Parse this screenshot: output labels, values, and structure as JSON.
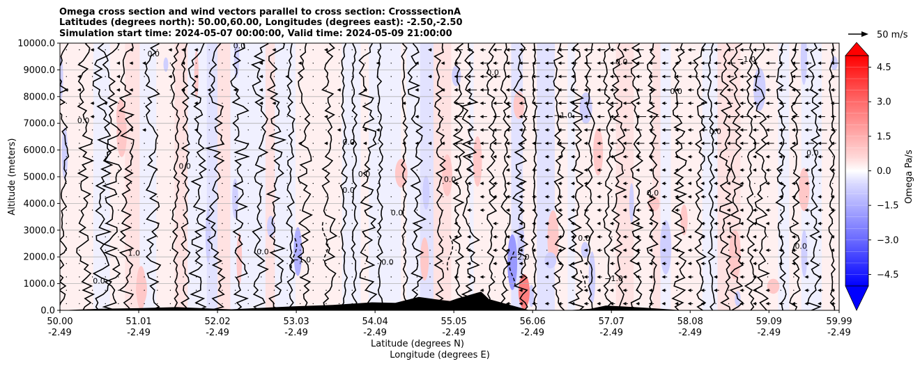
{
  "chart_data": {
    "type": "contour",
    "title_lines": [
      "Omega cross section and wind vectors parallel to cross section: CrosssectionA",
      "Latitudes (degrees north): 50.00,60.00, Longitudes (degrees east): -2.50,-2.50",
      "Simulation start time: 2024-05-07 00:00:00, Valid time: 2024-05-09 21:00:00"
    ],
    "ylabel": "Altitude (meters)",
    "xlabel_lat": "Latitude (degrees N)",
    "xlabel_lon": "Longitude (degrees E)",
    "xlim": [
      50.0,
      59.99
    ],
    "ylim": [
      0,
      10000
    ],
    "x_ticks": [
      {
        "value": 50.0,
        "lat": "50.00",
        "lon": "-2.49"
      },
      {
        "value": 51.01,
        "lat": "51.01",
        "lon": "-2.49"
      },
      {
        "value": 52.02,
        "lat": "52.02",
        "lon": "-2.49"
      },
      {
        "value": 53.03,
        "lat": "53.03",
        "lon": "-2.49"
      },
      {
        "value": 54.04,
        "lat": "54.04",
        "lon": "-2.49"
      },
      {
        "value": 55.05,
        "lat": "55.05",
        "lon": "-2.49"
      },
      {
        "value": 56.06,
        "lat": "56.06",
        "lon": "-2.49"
      },
      {
        "value": 57.07,
        "lat": "57.07",
        "lon": "-2.49"
      },
      {
        "value": 58.08,
        "lat": "58.08",
        "lon": "-2.49"
      },
      {
        "value": 59.09,
        "lat": "59.09",
        "lon": "-2.49"
      },
      {
        "value": 59.99,
        "lat": "59.99",
        "lon": "-2.49"
      }
    ],
    "y_ticks": [
      {
        "value": 0,
        "label": "0.0"
      },
      {
        "value": 1000,
        "label": "1000.0"
      },
      {
        "value": 2000,
        "label": "2000.0"
      },
      {
        "value": 3000,
        "label": "3000.0"
      },
      {
        "value": 4000,
        "label": "4000.0"
      },
      {
        "value": 5000,
        "label": "5000.0"
      },
      {
        "value": 6000,
        "label": "6000.0"
      },
      {
        "value": 7000,
        "label": "7000.0"
      },
      {
        "value": 8000,
        "label": "8000.0"
      },
      {
        "value": 9000,
        "label": "9000.0"
      },
      {
        "value": 10000,
        "label": "10000.0"
      }
    ],
    "grid": "horizontal",
    "colorbar": {
      "label": "Omega Pa/s",
      "vmin": -5.0,
      "vmax": 5.0,
      "ticks": [
        {
          "value": 4.5,
          "label": "4.5"
        },
        {
          "value": 3.0,
          "label": "3.0"
        },
        {
          "value": 1.5,
          "label": "1.5"
        },
        {
          "value": 0.0,
          "label": "0.0"
        },
        {
          "value": -1.5,
          "label": "−1.5"
        },
        {
          "value": -3.0,
          "label": "−3.0"
        },
        {
          "value": -4.5,
          "label": "−4.5"
        }
      ],
      "color_low": "#0000ff",
      "color_mid": "#ffffff",
      "color_high": "#ff0000"
    },
    "quiver_key": {
      "label": "50 m/s",
      "speed": 50
    },
    "contour_labels": [
      {
        "x": 50.95,
        "y": 2050,
        "text": "1.0"
      },
      {
        "x": 54.32,
        "y": 3550,
        "text": "0.0"
      },
      {
        "x": 53.9,
        "y": 5000,
        "text": "0.0"
      },
      {
        "x": 57.9,
        "y": 8100,
        "text": "0.0"
      },
      {
        "x": 56.72,
        "y": 2600,
        "text": "0.0"
      },
      {
        "x": 53.7,
        "y": 4400,
        "text": "0.0"
      },
      {
        "x": 51.2,
        "y": 9500,
        "text": "0.0"
      },
      {
        "x": 52.3,
        "y": 9800,
        "text": "0.0"
      },
      {
        "x": 50.3,
        "y": 7000,
        "text": "0.0"
      },
      {
        "x": 55.0,
        "y": 4800,
        "text": "0.0"
      },
      {
        "x": 57.2,
        "y": 9200,
        "text": "0.0"
      },
      {
        "x": 58.8,
        "y": 9300,
        "text": "−1.0"
      },
      {
        "x": 56.45,
        "y": 7200,
        "text": "−1.0"
      },
      {
        "x": 53.1,
        "y": 1800,
        "text": "−1.0"
      },
      {
        "x": 55.9,
        "y": 1900,
        "text": "−2.0"
      },
      {
        "x": 57.1,
        "y": 1100,
        "text": "−1.0"
      },
      {
        "x": 53.7,
        "y": 6200,
        "text": "0.0"
      },
      {
        "x": 58.4,
        "y": 6600,
        "text": "0.0"
      },
      {
        "x": 59.5,
        "y": 2300,
        "text": "0.0"
      },
      {
        "x": 54.2,
        "y": 1700,
        "text": "0.0"
      },
      {
        "x": 52.6,
        "y": 2100,
        "text": "0.0"
      },
      {
        "x": 59.65,
        "y": 5800,
        "text": "0.0"
      },
      {
        "x": 57.6,
        "y": 4300,
        "text": "0.0"
      },
      {
        "x": 55.55,
        "y": 8800,
        "text": "0.0"
      },
      {
        "x": 51.6,
        "y": 5300,
        "text": "0.0"
      },
      {
        "x": 50.5,
        "y": 1000,
        "text": "0.0"
      }
    ]
  }
}
